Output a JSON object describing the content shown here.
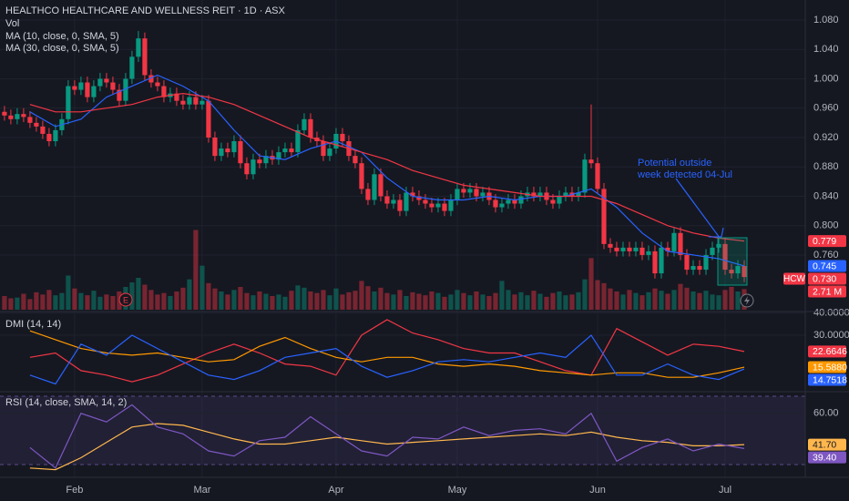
{
  "chart_data": {
    "type": "candlestick",
    "title": "HEALTHCO HEALTHCARE AND WELLNESS REIT · 1D · ASX",
    "symbol": "HCW",
    "up_color": "#089981",
    "down_color": "#f23645",
    "xlim": [
      -0.7,
      125
    ],
    "xticks": [
      {
        "value": 11,
        "label": "Feb"
      },
      {
        "value": 31,
        "label": "Mar"
      },
      {
        "value": 52,
        "label": "Apr"
      },
      {
        "value": 71,
        "label": "May"
      },
      {
        "value": 93,
        "label": "Jun"
      },
      {
        "value": 113,
        "label": "Jul"
      }
    ],
    "ylim": [
      0.6855,
      1.1073
    ],
    "yticks": [
      {
        "value": 1.08,
        "label": "1.080"
      },
      {
        "value": 1.04,
        "label": "1.040"
      },
      {
        "value": 1.0,
        "label": "1.000"
      },
      {
        "value": 0.96,
        "label": "0.960"
      },
      {
        "value": 0.92,
        "label": "0.920"
      },
      {
        "value": 0.88,
        "label": "0.880"
      },
      {
        "value": 0.84,
        "label": "0.840"
      },
      {
        "value": 0.8,
        "label": "0.800"
      },
      {
        "value": 0.76,
        "label": "0.760"
      }
    ],
    "open": [
      0.955,
      0.95,
      0.945,
      0.952,
      0.948,
      0.94,
      0.935,
      0.925,
      0.915,
      0.93,
      0.945,
      0.99,
      0.985,
      0.995,
      0.975,
      0.99,
      1.0,
      0.995,
      0.985,
      0.97,
      1.0,
      1.03,
      1.055,
      1.005,
      0.995,
      0.99,
      0.975,
      0.98,
      0.97,
      0.965,
      0.975,
      0.965,
      0.97,
      0.92,
      0.895,
      0.905,
      0.9,
      0.915,
      0.885,
      0.87,
      0.89,
      0.885,
      0.895,
      0.89,
      0.9,
      0.905,
      0.9,
      0.93,
      0.945,
      0.92,
      0.915,
      0.895,
      0.905,
      0.925,
      0.915,
      0.895,
      0.885,
      0.85,
      0.835,
      0.87,
      0.84,
      0.83,
      0.835,
      0.82,
      0.845,
      0.84,
      0.835,
      0.83,
      0.825,
      0.83,
      0.82,
      0.835,
      0.85,
      0.845,
      0.85,
      0.84,
      0.845,
      0.835,
      0.825,
      0.83,
      0.835,
      0.83,
      0.84,
      0.845,
      0.84,
      0.845,
      0.835,
      0.83,
      0.84,
      0.845,
      0.84,
      0.845,
      0.89,
      0.885,
      0.85,
      0.775,
      0.77,
      0.765,
      0.77,
      0.765,
      0.77,
      0.76,
      0.765,
      0.735,
      0.77,
      0.765,
      0.79,
      0.76,
      0.74,
      0.745,
      0.74,
      0.76,
      0.77,
      0.775,
      0.74,
      0.735,
      0.745
    ],
    "high": [
      0.963,
      0.958,
      0.96,
      0.96,
      0.956,
      0.948,
      0.943,
      0.933,
      0.938,
      0.953,
      0.998,
      0.998,
      1.003,
      1.003,
      0.998,
      1.008,
      1.008,
      1.003,
      0.993,
      1.008,
      1.038,
      1.065,
      1.063,
      1.013,
      1.003,
      0.998,
      0.988,
      0.988,
      0.978,
      0.983,
      0.983,
      0.978,
      0.978,
      0.928,
      0.913,
      0.913,
      0.923,
      0.923,
      0.893,
      0.898,
      0.898,
      0.903,
      0.903,
      0.908,
      0.913,
      0.913,
      0.938,
      0.953,
      0.953,
      0.928,
      0.923,
      0.913,
      0.933,
      0.933,
      0.923,
      0.903,
      0.893,
      0.858,
      0.878,
      0.878,
      0.848,
      0.843,
      0.843,
      0.853,
      0.853,
      0.848,
      0.843,
      0.838,
      0.838,
      0.838,
      0.843,
      0.858,
      0.858,
      0.858,
      0.858,
      0.853,
      0.853,
      0.843,
      0.838,
      0.843,
      0.843,
      0.848,
      0.853,
      0.853,
      0.853,
      0.853,
      0.843,
      0.848,
      0.853,
      0.853,
      0.853,
      0.898,
      0.965,
      0.893,
      0.858,
      0.783,
      0.778,
      0.778,
      0.778,
      0.778,
      0.778,
      0.773,
      0.773,
      0.778,
      0.778,
      0.798,
      0.798,
      0.768,
      0.753,
      0.753,
      0.768,
      0.778,
      0.783,
      0.783,
      0.748,
      0.753,
      0.753
    ],
    "low": [
      0.943,
      0.938,
      0.938,
      0.941,
      0.933,
      0.928,
      0.918,
      0.908,
      0.908,
      0.923,
      0.938,
      0.978,
      0.978,
      0.968,
      0.968,
      0.983,
      0.988,
      0.978,
      0.963,
      0.963,
      0.993,
      1.023,
      0.998,
      0.988,
      0.983,
      0.968,
      0.968,
      0.963,
      0.958,
      0.958,
      0.958,
      0.958,
      0.913,
      0.888,
      0.888,
      0.893,
      0.893,
      0.878,
      0.863,
      0.863,
      0.878,
      0.878,
      0.883,
      0.883,
      0.893,
      0.893,
      0.893,
      0.923,
      0.913,
      0.908,
      0.888,
      0.888,
      0.898,
      0.908,
      0.888,
      0.878,
      0.843,
      0.828,
      0.828,
      0.833,
      0.823,
      0.823,
      0.813,
      0.813,
      0.833,
      0.828,
      0.823,
      0.818,
      0.818,
      0.813,
      0.813,
      0.828,
      0.838,
      0.838,
      0.833,
      0.833,
      0.828,
      0.818,
      0.818,
      0.823,
      0.823,
      0.823,
      0.833,
      0.833,
      0.833,
      0.828,
      0.823,
      0.823,
      0.833,
      0.833,
      0.833,
      0.838,
      0.878,
      0.843,
      0.768,
      0.763,
      0.758,
      0.758,
      0.758,
      0.758,
      0.753,
      0.753,
      0.728,
      0.728,
      0.758,
      0.758,
      0.753,
      0.733,
      0.733,
      0.733,
      0.733,
      0.753,
      0.763,
      0.733,
      0.728,
      0.728,
      0.723
    ],
    "close": [
      0.95,
      0.945,
      0.952,
      0.948,
      0.94,
      0.935,
      0.925,
      0.915,
      0.93,
      0.945,
      0.99,
      0.985,
      0.995,
      0.975,
      0.99,
      1.0,
      0.995,
      0.985,
      0.97,
      1.0,
      1.03,
      1.055,
      1.005,
      0.995,
      0.99,
      0.975,
      0.98,
      0.97,
      0.965,
      0.975,
      0.965,
      0.97,
      0.92,
      0.895,
      0.905,
      0.9,
      0.915,
      0.885,
      0.87,
      0.89,
      0.885,
      0.895,
      0.89,
      0.9,
      0.905,
      0.9,
      0.93,
      0.945,
      0.92,
      0.915,
      0.895,
      0.905,
      0.925,
      0.915,
      0.895,
      0.885,
      0.85,
      0.835,
      0.87,
      0.84,
      0.83,
      0.835,
      0.82,
      0.845,
      0.84,
      0.835,
      0.83,
      0.825,
      0.83,
      0.82,
      0.835,
      0.85,
      0.845,
      0.85,
      0.84,
      0.845,
      0.835,
      0.825,
      0.83,
      0.835,
      0.83,
      0.84,
      0.845,
      0.84,
      0.845,
      0.835,
      0.83,
      0.84,
      0.845,
      0.84,
      0.845,
      0.89,
      0.885,
      0.85,
      0.775,
      0.77,
      0.765,
      0.77,
      0.765,
      0.77,
      0.76,
      0.765,
      0.735,
      0.77,
      0.765,
      0.79,
      0.76,
      0.74,
      0.745,
      0.74,
      0.76,
      0.77,
      0.775,
      0.74,
      0.735,
      0.745,
      0.73
    ],
    "close_label": "0.730",
    "volume_name": "Vol",
    "volume": [
      1.8,
      1.5,
      1.6,
      2.1,
      1.4,
      2.3,
      2.0,
      2.6,
      1.9,
      2.2,
      4.5,
      2.8,
      2.2,
      1.9,
      2.5,
      1.7,
      2.0,
      1.8,
      2.4,
      3.0,
      3.6,
      4.2,
      3.3,
      2.6,
      2.0,
      2.2,
      1.8,
      2.4,
      2.9,
      4.0,
      10.5,
      5.8,
      3.5,
      2.8,
      2.4,
      2.0,
      2.6,
      3.0,
      2.2,
      1.9,
      2.4,
      2.1,
      1.8,
      2.0,
      1.7,
      2.5,
      3.2,
      2.9,
      2.4,
      2.2,
      2.6,
      1.9,
      2.8,
      2.0,
      2.3,
      2.5,
      3.8,
      3.1,
      2.4,
      2.9,
      2.2,
      2.0,
      2.6,
      1.8,
      2.3,
      2.1,
      1.9,
      2.4,
      2.2,
      1.7,
      2.0,
      2.6,
      2.2,
      1.9,
      2.4,
      2.0,
      1.8,
      2.2,
      3.8,
      2.6,
      2.0,
      2.3,
      1.9,
      2.5,
      2.1,
      1.7,
      2.2,
      2.4,
      1.9,
      2.0,
      2.3,
      4.0,
      6.8,
      3.9,
      3.5,
      2.8,
      2.4,
      2.0,
      2.6,
      2.2,
      1.9,
      2.3,
      2.8,
      2.5,
      2.1,
      2.6,
      3.4,
      2.9,
      2.4,
      2.2,
      2.5,
      2.0,
      1.9,
      2.6,
      3.0,
      2.4,
      2.71
    ],
    "volume_label": "2.71 M",
    "volume_lim": [
      0,
      12
    ],
    "line_x": [
      4,
      8,
      12,
      16,
      20,
      24,
      28,
      32,
      36,
      40,
      44,
      48,
      52,
      56,
      60,
      64,
      68,
      72,
      76,
      80,
      84,
      88,
      92,
      96,
      100,
      104,
      108,
      112,
      116
    ],
    "series": [
      {
        "name": "MA (10, close, 0, SMA, 5)",
        "color": "#2962ff",
        "values": [
          0.955,
          0.935,
          0.945,
          0.975,
          0.99,
          1.005,
          0.99,
          0.97,
          0.93,
          0.895,
          0.89,
          0.905,
          0.915,
          0.9,
          0.865,
          0.84,
          0.835,
          0.835,
          0.84,
          0.835,
          0.84,
          0.84,
          0.85,
          0.825,
          0.79,
          0.765,
          0.76,
          0.755,
          0.745
        ],
        "last_label": "0.745"
      },
      {
        "name": "MA (30, close, 0, SMA, 5)",
        "color": "#f23645",
        "values": [
          0.965,
          0.955,
          0.955,
          0.96,
          0.965,
          0.975,
          0.98,
          0.975,
          0.965,
          0.95,
          0.935,
          0.92,
          0.91,
          0.9,
          0.89,
          0.875,
          0.865,
          0.855,
          0.85,
          0.845,
          0.84,
          0.84,
          0.84,
          0.83,
          0.815,
          0.8,
          0.79,
          0.783,
          0.779
        ],
        "last_label": "0.779"
      }
    ],
    "annotation": [
      "Potential outside",
      "week detected 04-Jul"
    ],
    "panes": [
      {
        "title": "DMI (14, 14)",
        "ylim": [
          4.5,
          40.3
        ],
        "yticks": [
          {
            "value": 40,
            "label": "40.0000"
          },
          {
            "value": 30,
            "label": "30.0000"
          }
        ],
        "series": [
          {
            "color": "#f23645",
            "values": [
              20,
              22,
              14,
              12,
              9,
              12,
              17,
              22,
              26,
              22,
              17,
              16,
              12,
              30,
              37,
              31,
              28,
              24,
              22,
              22,
              18,
              14,
              12,
              33,
              27,
              21,
              26,
              25,
              22.6646
            ],
            "last_label": "22.6646"
          },
          {
            "color": "#ff9800",
            "values": [
              32,
              28,
              24,
              22,
              21,
              22,
              20,
              18,
              19,
              25,
              29,
              24,
              20,
              18,
              20,
              20,
              17,
              16,
              17,
              16,
              14,
              13,
              12,
              13,
              13,
              11,
              11,
              13,
              15.588
            ],
            "last_label": "15.5880"
          },
          {
            "color": "#2962ff",
            "values": [
              12,
              8,
              26,
              21,
              30,
              24,
              18,
              12,
              10,
              14,
              20,
              22,
              24,
              16,
              11,
              14,
              18,
              19,
              18,
              20,
              22,
              20,
              30,
              12,
              12,
              17,
              12,
              10,
              14.7518
            ],
            "last_label": "14.7518"
          }
        ]
      },
      {
        "title": "RSI (14, close, SMA, 14, 2)",
        "ylim": [
          23.6,
          72.7
        ],
        "yticks": [
          {
            "value": 60,
            "label": "60.00"
          }
        ],
        "band": [
          30,
          70
        ],
        "series": [
          {
            "color": "#ffb74d",
            "values": [
              28,
              27,
              34,
              43,
              52,
              54,
              53,
              49,
              45,
              42,
              42,
              44,
              46,
              44,
              42,
              43,
              44,
              45,
              46,
              47,
              48,
              47,
              49,
              46,
              44,
              43,
              41,
              41,
              41.7
            ],
            "last_label": "41.70"
          },
          {
            "color": "#7e57c2",
            "values": [
              40,
              28,
              60,
              55,
              65,
              52,
              48,
              38,
              35,
              44,
              46,
              58,
              48,
              38,
              35,
              46,
              45,
              52,
              47,
              50,
              51,
              48,
              60,
              32,
              40,
              45,
              38,
              42,
              39.4
            ],
            "last_label": "39.40"
          }
        ]
      }
    ]
  }
}
